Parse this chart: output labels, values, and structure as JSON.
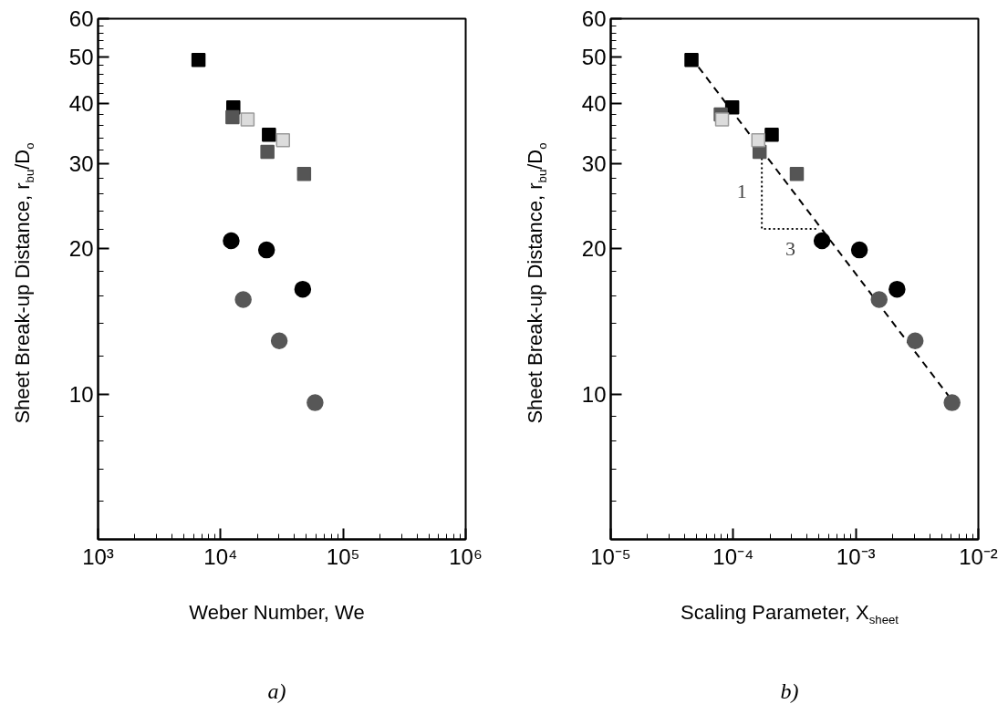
{
  "chart_data": [
    {
      "type": "scatter",
      "xlabel": "Weber Number, We",
      "ylabel": "Sheet Break-up Distance, r$_{bu}$/D$_{o}$",
      "annotations": [
        "a)"
      ],
      "log": "xy",
      "xlim": [
        1000,
        1000000
      ],
      "ylim": [
        5,
        60
      ],
      "xticks": [
        {
          "value": 1000,
          "label": "10³"
        },
        {
          "value": 10000,
          "label": "10⁴"
        },
        {
          "value": 100000,
          "label": "10⁵"
        },
        {
          "value": 1000000,
          "label": "10⁶"
        }
      ],
      "yticks": [
        10,
        20,
        30,
        40,
        50,
        60
      ],
      "series": [
        {
          "color": "#000000",
          "marker": "square",
          "x": [
            6600,
            12700,
            24800
          ],
          "values": [
            49.3,
            39.3,
            34.5
          ]
        },
        {
          "color": "#555555",
          "marker": "square",
          "x": [
            12500,
            24100,
            48000
          ],
          "values": [
            37.5,
            31.8,
            28.6
          ]
        },
        {
          "color": "#dcdcdc",
          "marker": "square",
          "x": [
            16600,
            32300
          ],
          "values": [
            37.1,
            33.6
          ]
        },
        {
          "color": "#000000",
          "marker": "circle",
          "x": [
            12200,
            23700,
            46800
          ],
          "values": [
            20.8,
            19.9,
            16.5
          ]
        },
        {
          "color": "#575757",
          "marker": "circle",
          "x": [
            15300,
            30100,
            59000
          ],
          "values": [
            15.7,
            12.9,
            9.6
          ]
        }
      ]
    },
    {
      "type": "scatter",
      "xlabel": "Scaling Parameter, X$_{sheet}$",
      "ylabel": "Sheet Break-up Distance, r$_{bu}$/D$_{o}$",
      "annotations": [
        "1",
        "3",
        "b)"
      ],
      "log": "xy",
      "xlim": [
        1e-05,
        0.01
      ],
      "ylim": [
        5,
        60
      ],
      "xticks": [
        {
          "value": 1e-05,
          "label": "10⁻⁵"
        },
        {
          "value": 0.0001,
          "label": "10⁻⁴"
        },
        {
          "value": 0.001,
          "label": "10⁻³"
        },
        {
          "value": 0.01,
          "label": "10⁻²"
        }
      ],
      "yticks": [
        10,
        20,
        30,
        40,
        50,
        60
      ],
      "series": [
        {
          "type": "line",
          "color": "#000000",
          "line_style": "dashed",
          "marker": "none",
          "x": [
            4.5e-05,
            0.0063
          ],
          "values": [
            50,
            9.6
          ]
        },
        {
          "type": "line",
          "color": "#000000",
          "line_style": "dotted",
          "marker": "none",
          "x": [
            0.000171,
            0.000171,
            0.0005
          ],
          "values": [
            31.5,
            22,
            22
          ]
        },
        {
          "color": "#000000",
          "marker": "square",
          "x": [
            4.56e-05,
            9.8e-05,
            0.000206
          ],
          "values": [
            49.3,
            39.3,
            34.5
          ]
        },
        {
          "color": "#555555",
          "marker": "square",
          "x": [
            7.9e-05,
            0.000164,
            0.00033
          ],
          "values": [
            38.0,
            31.8,
            28.6
          ]
        },
        {
          "color": "#dcdcdc",
          "marker": "square",
          "x": [
            8.1e-05,
            0.00016
          ],
          "values": [
            37.1,
            33.6
          ]
        },
        {
          "color": "#000000",
          "marker": "circle",
          "x": [
            0.00053,
            0.00107,
            0.00217
          ],
          "values": [
            20.8,
            19.9,
            16.5
          ]
        },
        {
          "color": "#575757",
          "marker": "circle",
          "x": [
            0.00155,
            0.00305,
            0.0061
          ],
          "values": [
            15.7,
            12.9,
            9.6
          ]
        }
      ]
    }
  ]
}
